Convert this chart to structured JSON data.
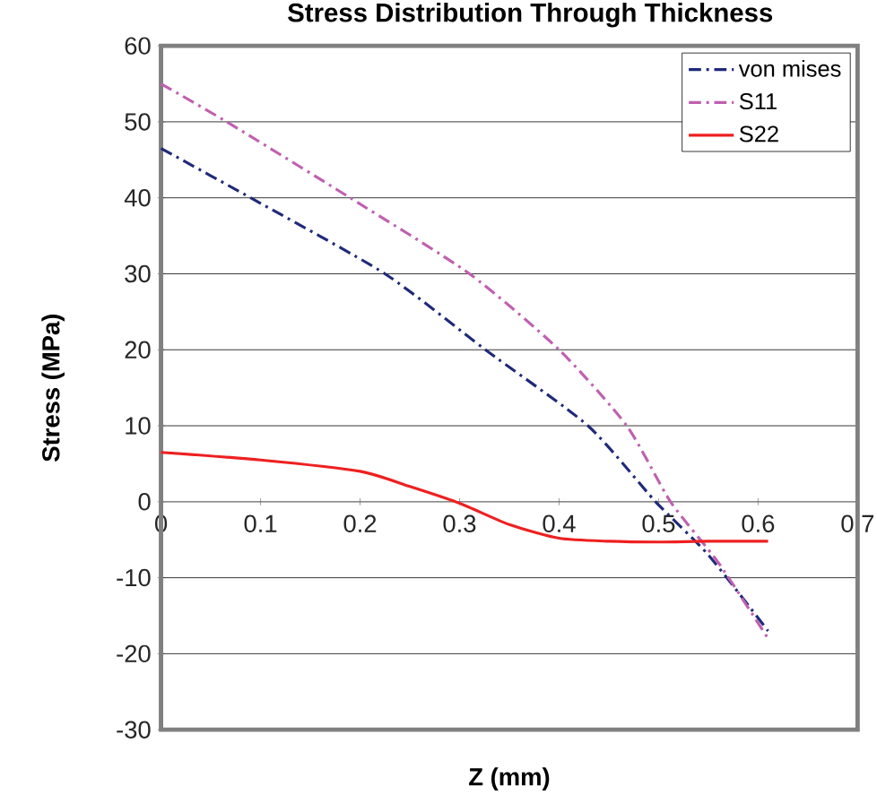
{
  "chart_data": {
    "type": "line",
    "title": "Stress Distribution Through Thickness",
    "xlabel": "Z (mm)",
    "ylabel": "Stress (MPa)",
    "xlim": [
      0,
      0.7
    ],
    "xticks": [
      0,
      0.1,
      0.2,
      0.3,
      0.4,
      0.5,
      0.6,
      0.7
    ],
    "ylim": [
      -30,
      60
    ],
    "yticks": [
      -30,
      -20,
      -10,
      0,
      10,
      20,
      30,
      40,
      50,
      60
    ],
    "grid": "y",
    "legend": "top right",
    "marker": "none",
    "series": [
      {
        "name": "von mises",
        "color": "#1f2a7a",
        "line_style": "dashdot",
        "x": [
          0,
          0.09,
          0.225,
          0.326,
          0.429,
          0.497,
          0.55,
          0.61
        ],
        "values": [
          46.5,
          40,
          30,
          20,
          10,
          0,
          -7,
          -17
        ]
      },
      {
        "name": "S11",
        "color": "#c060b0",
        "line_style": "dashdot",
        "x": [
          0,
          0.066,
          0.19,
          0.31,
          0.4,
          0.468,
          0.512,
          0.56,
          0.61
        ],
        "values": [
          55,
          50,
          40,
          30,
          20,
          10,
          0,
          -8,
          -18
        ]
      },
      {
        "name": "S22",
        "color": "#ee2020",
        "line_style": "solid",
        "x": [
          0,
          0.1,
          0.2,
          0.25,
          0.3,
          0.35,
          0.4,
          0.45,
          0.5,
          0.55,
          0.61
        ],
        "values": [
          6.5,
          5.5,
          4,
          2,
          -0.2,
          -3,
          -4.8,
          -5.2,
          -5.3,
          -5.2,
          -5.2
        ]
      }
    ]
  }
}
